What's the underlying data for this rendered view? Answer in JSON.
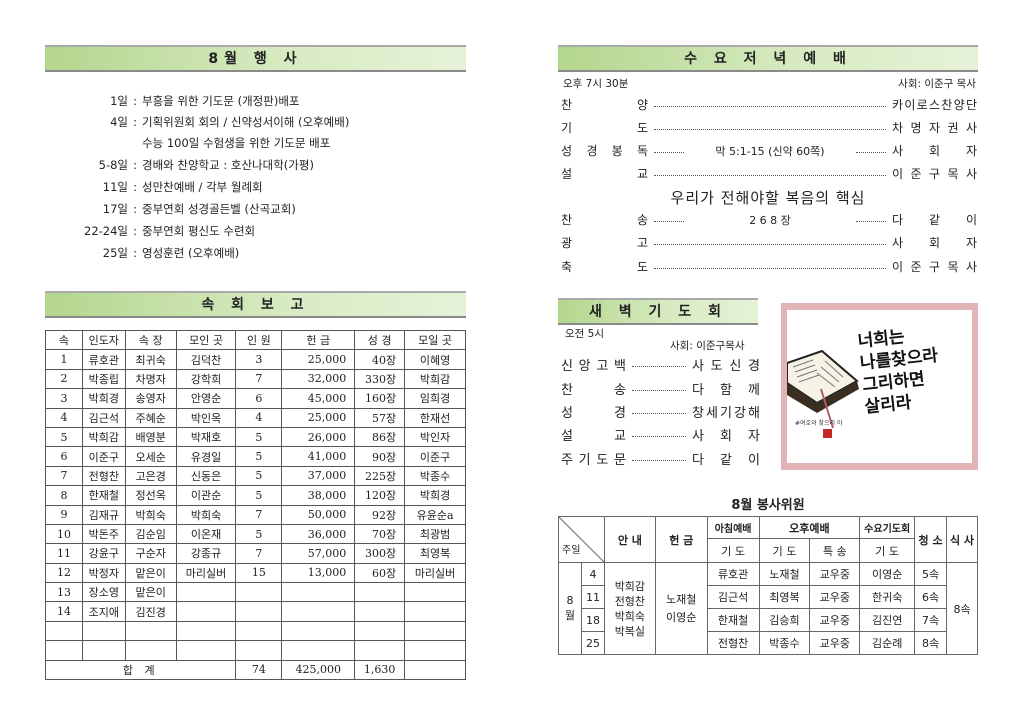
{
  "events": {
    "title": "8월  행 사",
    "items": [
      {
        "date": "1일",
        "text": "부흥을 위한 기도문 (개정판)배포"
      },
      {
        "date": "4일",
        "text": "기획위원회 회의 / 신약성서이해 (오후예배)"
      },
      {
        "date": "",
        "text": "수능 100일 수험생을 위한 기도문 배포"
      },
      {
        "date": "5-8일",
        "text": "경배와 찬양학교 : 호산나대학(가평)"
      },
      {
        "date": "11일",
        "text": "성만찬예배 / 각부 월례회"
      },
      {
        "date": "17일",
        "text": "중부연회 성경골든벨 (산곡교회)"
      },
      {
        "date": "22-24일",
        "text": "중부연회 평신도 수련회"
      },
      {
        "date": "25일",
        "text": "영성훈련 (오후예배)"
      }
    ]
  },
  "cell_report": {
    "title": "속 회 보 고",
    "headers": [
      "속",
      "인도자",
      "속  장",
      "모인 곳",
      "인 원",
      "헌   금",
      "성  경",
      "모일 곳"
    ],
    "rows": [
      [
        "1",
        "류호관",
        "최귀숙",
        "김덕찬",
        "3",
        "25,000",
        "40장",
        "이혜영"
      ],
      [
        "2",
        "박종립",
        "차명자",
        "강학희",
        "7",
        "32,000",
        "330장",
        "박희감"
      ],
      [
        "3",
        "박희경",
        "송영자",
        "안영순",
        "6",
        "45,000",
        "160장",
        "임희경"
      ],
      [
        "4",
        "김근석",
        "주혜순",
        "박인옥",
        "4",
        "25,000",
        "57장",
        "한재선"
      ],
      [
        "5",
        "박희감",
        "배영분",
        "박재호",
        "5",
        "26,000",
        "86장",
        "박인자"
      ],
      [
        "6",
        "이준구",
        "오세순",
        "유경일",
        "5",
        "41,000",
        "90장",
        "이준구"
      ],
      [
        "7",
        "전형찬",
        "고은경",
        "신동은",
        "5",
        "37,000",
        "225장",
        "박종수"
      ],
      [
        "8",
        "한재철",
        "정선옥",
        "이관순",
        "5",
        "38,000",
        "120장",
        "박희경"
      ],
      [
        "9",
        "김재규",
        "박희숙",
        "박희숙",
        "7",
        "50,000",
        "92장",
        "유윤순a"
      ],
      [
        "10",
        "박돈주",
        "김순임",
        "이온재",
        "5",
        "36,000",
        "70장",
        "최광범"
      ],
      [
        "11",
        "강윤구",
        "구순자",
        "강종규",
        "7",
        "57,000",
        "300장",
        "최영복"
      ],
      [
        "12",
        "박정자",
        "맡은이",
        "마리실버",
        "15",
        "13,000",
        "60장",
        "마리실버"
      ],
      [
        "13",
        "장소영",
        "맡은이",
        "",
        "",
        "",
        "",
        ""
      ],
      [
        "14",
        "조지애",
        "김진경",
        "",
        "",
        "",
        "",
        ""
      ],
      [
        "",
        "",
        "",
        "",
        "",
        "",
        "",
        ""
      ],
      [
        "",
        "",
        "",
        "",
        "",
        "",
        "",
        ""
      ]
    ],
    "total": {
      "label": "합    계",
      "people": "74",
      "offering": "425,000",
      "bible": "1,630"
    }
  },
  "wednesday": {
    "title": "수 요 저 녁 예 배",
    "time": "오후 7시 30분",
    "host": "사회: 이준구 목사",
    "sermon_title": "우리가 전해야할 복음의 핵심",
    "items": [
      {
        "label": "찬양",
        "middle": "",
        "value": "카이로스찬양단"
      },
      {
        "label": "기도",
        "middle": "",
        "value": "차명자권사"
      },
      {
        "label": "성경봉독",
        "middle": "막 5:1-15 (신약 60쪽)",
        "value": "사회자"
      },
      {
        "label": "설교",
        "middle": "",
        "value": "이준구목사"
      }
    ],
    "items2": [
      {
        "label": "찬송",
        "middle": "2 6 8 장",
        "value": "다같이"
      },
      {
        "label": "광고",
        "middle": "",
        "value": "사회자"
      },
      {
        "label": "축도",
        "middle": "",
        "value": "이준구목사"
      }
    ]
  },
  "dawn": {
    "title": "새 벽 기 도 회",
    "time": "오전 5시",
    "host": "사회: 이준구목사",
    "items": [
      {
        "label": "신앙고백",
        "value": "사도신경"
      },
      {
        "label": "찬송",
        "value": "다함께"
      },
      {
        "label": "성경",
        "value": "창세기강해"
      },
      {
        "label": "설교",
        "value": "사회자"
      },
      {
        "label": "주기도문",
        "value": "다같이"
      }
    ]
  },
  "calligraphy": {
    "lines": [
      "너희는",
      "나를찾으라",
      "그리하면",
      "살리라"
    ],
    "caption": "#여호와 찾으리 아",
    "border_color": "#e2b4b8"
  },
  "service": {
    "title": "8월  봉사위원",
    "corner_label": "주일",
    "month_label": "8월",
    "headers": {
      "guide": "안  내",
      "offering": "헌  금",
      "morning": "아침예배",
      "afternoon": "오후예배",
      "wednesday": "수요기도회",
      "cleaning": "청 소",
      "meal": "식 사",
      "prayer": "기  도",
      "special": "특  송"
    },
    "guide": [
      "박희감",
      "전형찬",
      "박희숙",
      "박복실"
    ],
    "offering": [
      "노재철",
      "이영순"
    ],
    "meal": "8속",
    "weeks": [
      {
        "day": "4",
        "morning": "류호관",
        "afternoon_prayer": "노재철",
        "special": "교우중",
        "wednesday": "이영순",
        "cleaning": "5속"
      },
      {
        "day": "11",
        "morning": "김근석",
        "afternoon_prayer": "최영복",
        "special": "교우중",
        "wednesday": "한귀숙",
        "cleaning": "6속"
      },
      {
        "day": "18",
        "morning": "한재철",
        "afternoon_prayer": "김승희",
        "special": "교우중",
        "wednesday": "김진연",
        "cleaning": "7속"
      },
      {
        "day": "25",
        "morning": "전형찬",
        "afternoon_prayer": "박종수",
        "special": "교우중",
        "wednesday": "김순례",
        "cleaning": "8속"
      }
    ]
  },
  "colors": {
    "header_green": "#b3d68d",
    "rule": "#8a8a8a"
  }
}
